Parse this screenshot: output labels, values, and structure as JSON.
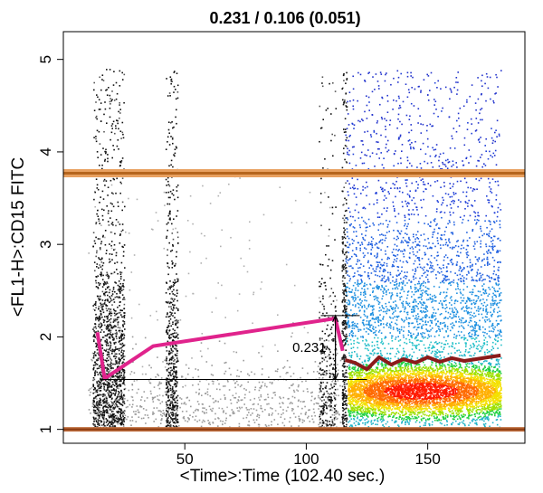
{
  "chart_data": {
    "type": "scatter",
    "title": "0.231 / 0.106 (0.051)",
    "xlabel": "<Time>:Time (102.40 sec.)",
    "ylabel": "<FL1-H>:CD15 FITC",
    "xlim": [
      0,
      190
    ],
    "ylim": [
      0.85,
      5.3
    ],
    "x_ticks": [
      50,
      100,
      150
    ],
    "y_ticks": [
      1,
      2,
      3,
      4,
      5
    ],
    "grid": false,
    "gates": {
      "upper": 3.77,
      "lower": 1.0,
      "color": "#b5651d"
    },
    "clusters": [
      {
        "name": "",
        "x_range": [
          12,
          25
        ],
        "y_center": 1.3,
        "density": "high",
        "color": "#000000"
      },
      {
        "name": "",
        "x_range": [
          42,
          47
        ],
        "y_center": 1.3,
        "density": "high",
        "color": "#000000"
      },
      {
        "name": "",
        "x_range": [
          105,
          112
        ],
        "y_center": 1.3,
        "density": "medium",
        "color": "#000000"
      },
      {
        "name": "",
        "x_range": [
          115,
          180
        ],
        "y_center": 1.42,
        "density": "very-high",
        "color": "#ff0000"
      }
    ],
    "median_line": {
      "color": "#e0238c",
      "x": [
        14,
        17,
        37,
        112,
        115
      ],
      "y": [
        2.05,
        1.55,
        1.9,
        2.2,
        1.85
      ]
    },
    "stable_line": {
      "color": "#8b1a1a",
      "x": [
        116,
        120,
        125,
        130,
        135,
        140,
        145,
        150,
        155,
        160,
        165,
        170,
        175,
        180
      ],
      "y": [
        1.75,
        1.72,
        1.65,
        1.78,
        1.7,
        1.76,
        1.72,
        1.78,
        1.73,
        1.77,
        1.74,
        1.76,
        1.78,
        1.8
      ]
    },
    "annotation": {
      "label": "0.231",
      "x": 112,
      "y_top": 2.23,
      "y_bottom": 1.54
    }
  }
}
